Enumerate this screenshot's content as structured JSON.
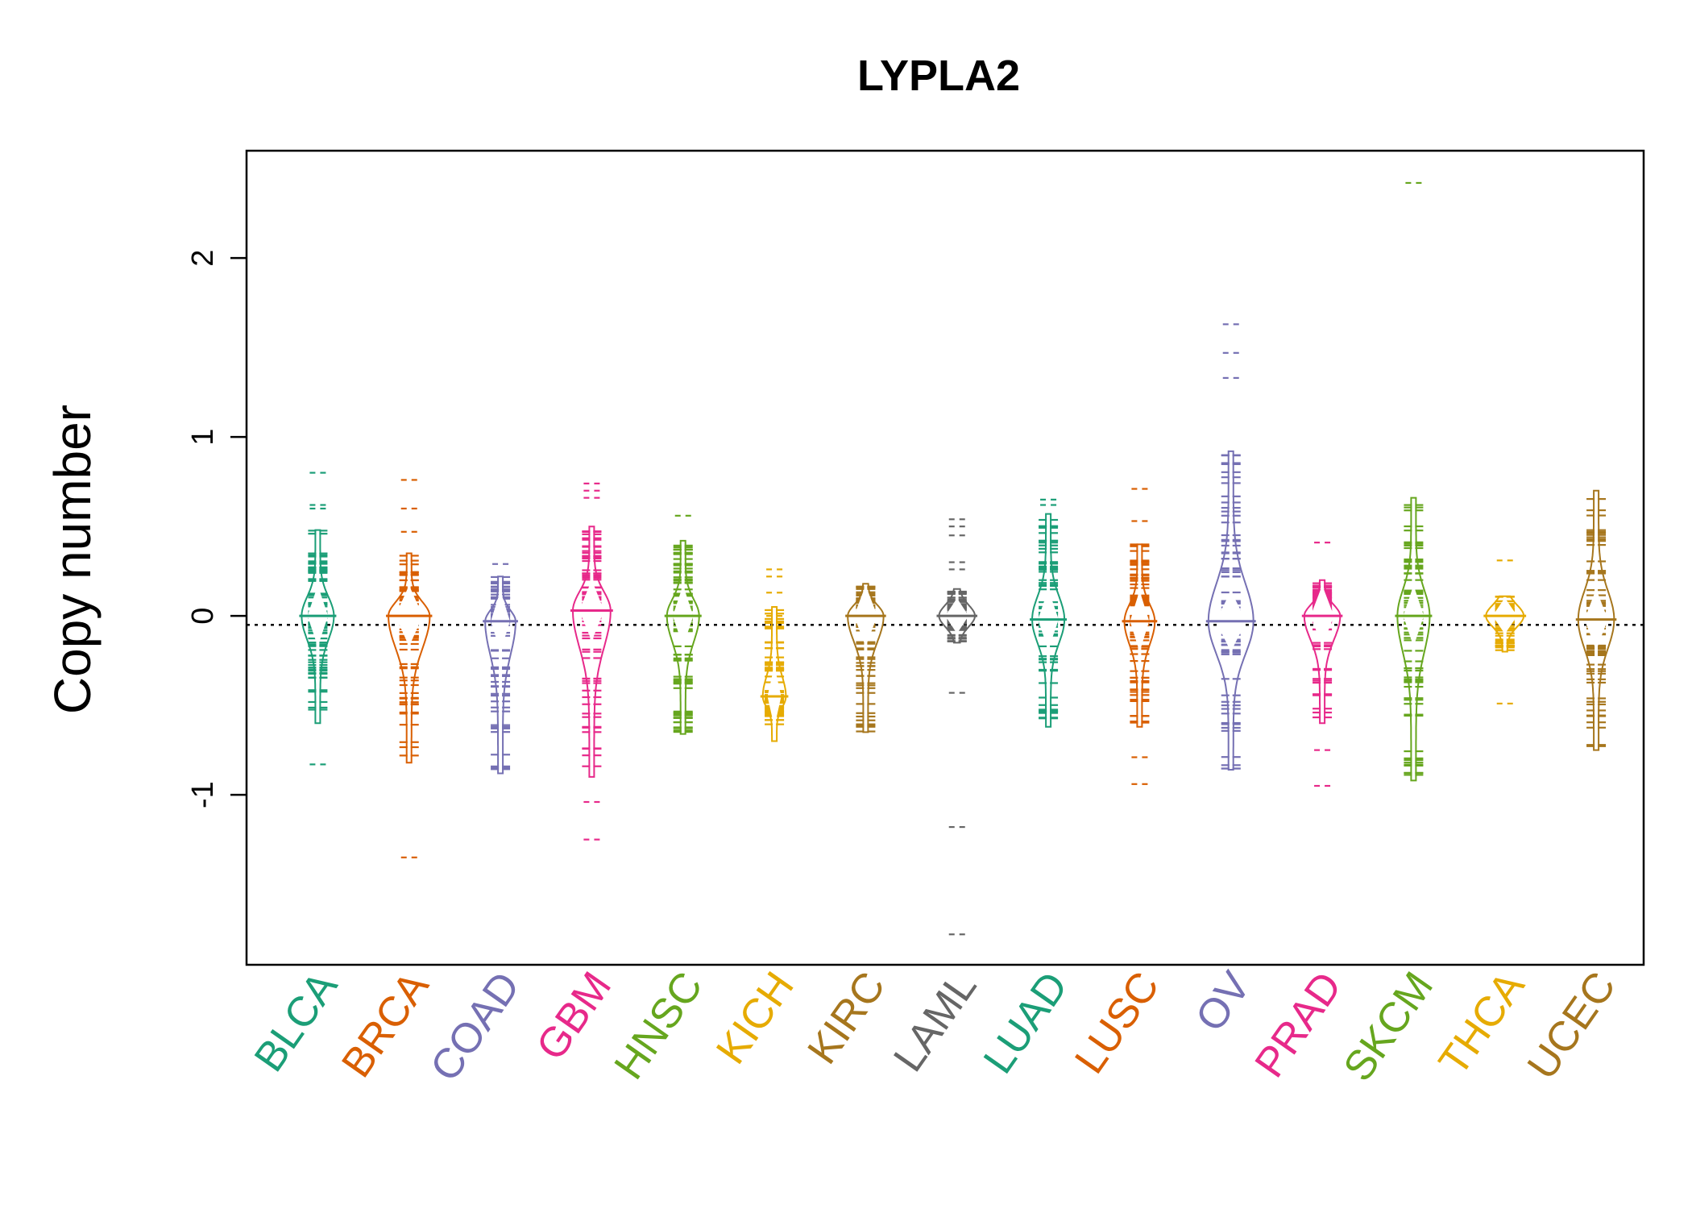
{
  "chart_data": {
    "type": "beanplot",
    "title": "LYPLA2",
    "xlabel": "",
    "ylabel": "Copy number",
    "ylim": [
      -1.95,
      2.6
    ],
    "yticks": [
      -1,
      0,
      1,
      2
    ],
    "reference_line": -0.05,
    "grid": false,
    "legend": "none",
    "categories": [
      {
        "name": "BLCA",
        "color": "#1B9E77",
        "center": 0.0,
        "halfwidth": 0.3,
        "rangeMin": -0.6,
        "rangeMax": 0.48,
        "outliers": [
          0.8,
          0.62,
          0.6,
          -0.83
        ]
      },
      {
        "name": "BRCA",
        "color": "#D95F02",
        "center": 0.0,
        "halfwidth": 0.4,
        "rangeMin": -0.82,
        "rangeMax": 0.35,
        "outliers": [
          0.76,
          0.6,
          0.47,
          -1.35
        ]
      },
      {
        "name": "COAD",
        "color": "#7570B3",
        "center": -0.03,
        "halfwidth": 0.28,
        "rangeMin": -0.88,
        "rangeMax": 0.22,
        "outliers": [
          0.29
        ]
      },
      {
        "name": "GBM",
        "color": "#E7298A",
        "center": 0.03,
        "halfwidth": 0.36,
        "rangeMin": -0.9,
        "rangeMax": 0.5,
        "outliers": [
          0.74,
          0.7,
          0.66,
          -1.04,
          -1.25
        ]
      },
      {
        "name": "HNSC",
        "color": "#66A61E",
        "center": 0.0,
        "halfwidth": 0.3,
        "rangeMin": -0.66,
        "rangeMax": 0.42,
        "outliers": [
          0.56
        ]
      },
      {
        "name": "KICH",
        "color": "#E6AB02",
        "center": -0.45,
        "halfwidth": 0.2,
        "rangeMin": -0.7,
        "rangeMax": 0.05,
        "outliers": [
          0.26,
          0.22,
          0.13,
          0.0
        ]
      },
      {
        "name": "KIRC",
        "color": "#A6761D",
        "center": 0.0,
        "halfwidth": 0.34,
        "rangeMin": -0.65,
        "rangeMax": 0.18,
        "outliers": []
      },
      {
        "name": "LAML",
        "color": "#666666",
        "center": 0.0,
        "halfwidth": 0.34,
        "rangeMin": -0.15,
        "rangeMax": 0.15,
        "outliers": [
          0.54,
          0.5,
          0.45,
          0.3,
          0.26,
          -0.43,
          -1.18,
          -1.78
        ]
      },
      {
        "name": "LUAD",
        "color": "#1B9E77",
        "center": -0.02,
        "halfwidth": 0.3,
        "rangeMin": -0.62,
        "rangeMax": 0.57,
        "outliers": [
          0.65,
          0.62
        ]
      },
      {
        "name": "LUSC",
        "color": "#D95F02",
        "center": -0.03,
        "halfwidth": 0.28,
        "rangeMin": -0.62,
        "rangeMax": 0.4,
        "outliers": [
          0.71,
          0.53,
          -0.79,
          -0.94
        ]
      },
      {
        "name": "OV",
        "color": "#7570B3",
        "center": -0.03,
        "halfwidth": 0.44,
        "rangeMin": -0.86,
        "rangeMax": 0.92,
        "outliers": [
          1.63,
          1.47,
          1.33
        ]
      },
      {
        "name": "PRAD",
        "color": "#E7298A",
        "center": 0.0,
        "halfwidth": 0.34,
        "rangeMin": -0.6,
        "rangeMax": 0.2,
        "outliers": [
          0.41,
          -0.75,
          -0.95
        ]
      },
      {
        "name": "SKCM",
        "color": "#66A61E",
        "center": 0.0,
        "halfwidth": 0.3,
        "rangeMin": -0.92,
        "rangeMax": 0.66,
        "outliers": [
          2.42
        ]
      },
      {
        "name": "THCA",
        "color": "#E6AB02",
        "center": 0.0,
        "halfwidth": 0.36,
        "rangeMin": -0.2,
        "rangeMax": 0.11,
        "outliers": [
          0.31,
          -0.49
        ]
      },
      {
        "name": "UCEC",
        "color": "#A6761D",
        "center": -0.02,
        "halfwidth": 0.34,
        "rangeMin": -0.75,
        "rangeMax": 0.7,
        "outliers": []
      }
    ]
  }
}
